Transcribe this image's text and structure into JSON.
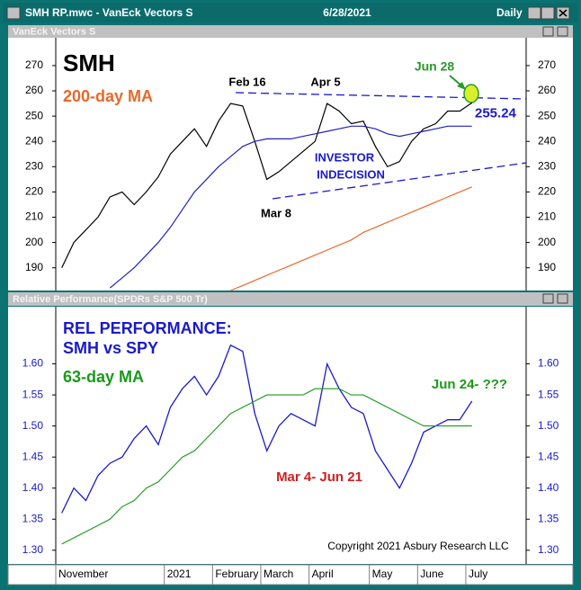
{
  "window": {
    "title": "SMH RP.mwc - VanEck Vectors S",
    "date": "6/28/2021",
    "period": "Daily"
  },
  "x_axis": {
    "categories": [
      "November",
      null,
      null,
      null,
      null,
      null,
      null,
      null,
      null,
      "2021",
      null,
      null,
      null,
      "February",
      null,
      null,
      null,
      "March",
      null,
      null,
      null,
      "April",
      null,
      null,
      null,
      null,
      "May",
      null,
      null,
      null,
      "June",
      null,
      null,
      null,
      "July",
      null,
      null,
      null,
      null
    ]
  },
  "chart_data": [
    {
      "type": "line",
      "title": "VanEck Vectors S",
      "ylim": [
        181,
        281
      ],
      "yticks": [
        190,
        200,
        210,
        220,
        230,
        240,
        250,
        260,
        270
      ],
      "series": [
        {
          "name": "SMH",
          "color": "#000000",
          "values": [
            190,
            200,
            205,
            210,
            218,
            220,
            215,
            220,
            226,
            235,
            240,
            245,
            238,
            248,
            255,
            254,
            240,
            225,
            228,
            232,
            236,
            240,
            255,
            252,
            247,
            248,
            238,
            230,
            232,
            240,
            245,
            247,
            252,
            252,
            255.24,
            null,
            null,
            null,
            null
          ]
        },
        {
          "color": "#2020c0",
          "values": [
            null,
            null,
            null,
            null,
            182,
            186,
            190,
            195,
            200,
            206,
            213,
            220,
            225,
            230,
            234,
            238,
            240,
            241,
            241,
            241,
            242,
            243,
            244,
            245,
            246,
            246,
            245,
            243,
            242,
            243,
            244,
            245,
            246,
            246,
            246,
            null,
            null,
            null,
            null
          ]
        },
        {
          "name": "200-day MA",
          "color": "#e8692a",
          "values": [
            null,
            null,
            null,
            null,
            null,
            null,
            null,
            null,
            null,
            null,
            null,
            null,
            null,
            null,
            181,
            183,
            185,
            187,
            189,
            191,
            193,
            195,
            197,
            199,
            201,
            204,
            206,
            208,
            210,
            212,
            214,
            216,
            218,
            220,
            222,
            null,
            null,
            null,
            null
          ]
        }
      ],
      "annotations": [
        "Feb 16",
        "Apr 5",
        "Jun 28",
        "Mar 8",
        "INVESTOR",
        "INDECISION"
      ]
    },
    {
      "type": "line",
      "title": "Relative Performance(SPDRs S&P 500 Tr)",
      "ylim": [
        1.278,
        1.692
      ],
      "yticks": [
        {
          "value": 1.3,
          "label": "1.30"
        },
        {
          "value": 1.35,
          "label": "1.35"
        },
        {
          "value": 1.4,
          "label": "1.40"
        },
        {
          "value": 1.45,
          "label": "1.45"
        },
        {
          "value": 1.5,
          "label": "1.50"
        },
        {
          "value": 1.55,
          "label": "1.55"
        },
        {
          "value": 1.6,
          "label": "1.60"
        }
      ],
      "series": [
        {
          "name": "REL PERFORMANCE:",
          "color": "#1a1acc",
          "values": [
            1.36,
            1.4,
            1.38,
            1.42,
            1.44,
            1.45,
            1.48,
            1.5,
            1.47,
            1.53,
            1.56,
            1.58,
            1.55,
            1.58,
            1.63,
            1.62,
            1.52,
            1.46,
            1.5,
            1.52,
            1.51,
            1.5,
            1.6,
            1.56,
            1.53,
            1.52,
            1.46,
            1.43,
            1.4,
            1.44,
            1.49,
            1.5,
            1.51,
            1.51,
            1.54,
            null,
            null,
            null,
            null
          ]
        },
        {
          "name": "63-day MA",
          "color": "#1a9a1a",
          "values": [
            1.31,
            1.32,
            1.33,
            1.34,
            1.35,
            1.37,
            1.38,
            1.4,
            1.41,
            1.43,
            1.45,
            1.46,
            1.48,
            1.5,
            1.52,
            1.53,
            1.54,
            1.55,
            1.55,
            1.55,
            1.55,
            1.56,
            1.56,
            1.56,
            1.55,
            1.55,
            1.54,
            1.53,
            1.52,
            1.51,
            1.5,
            1.5,
            1.5,
            1.5,
            1.5,
            null,
            null,
            null,
            null
          ]
        }
      ],
      "annotations": [
        "SMH vs SPY",
        "Mar 4- Jun 21",
        "Jun 24- ???",
        "Copyright 2021 Asbury Research LLC"
      ]
    }
  ]
}
